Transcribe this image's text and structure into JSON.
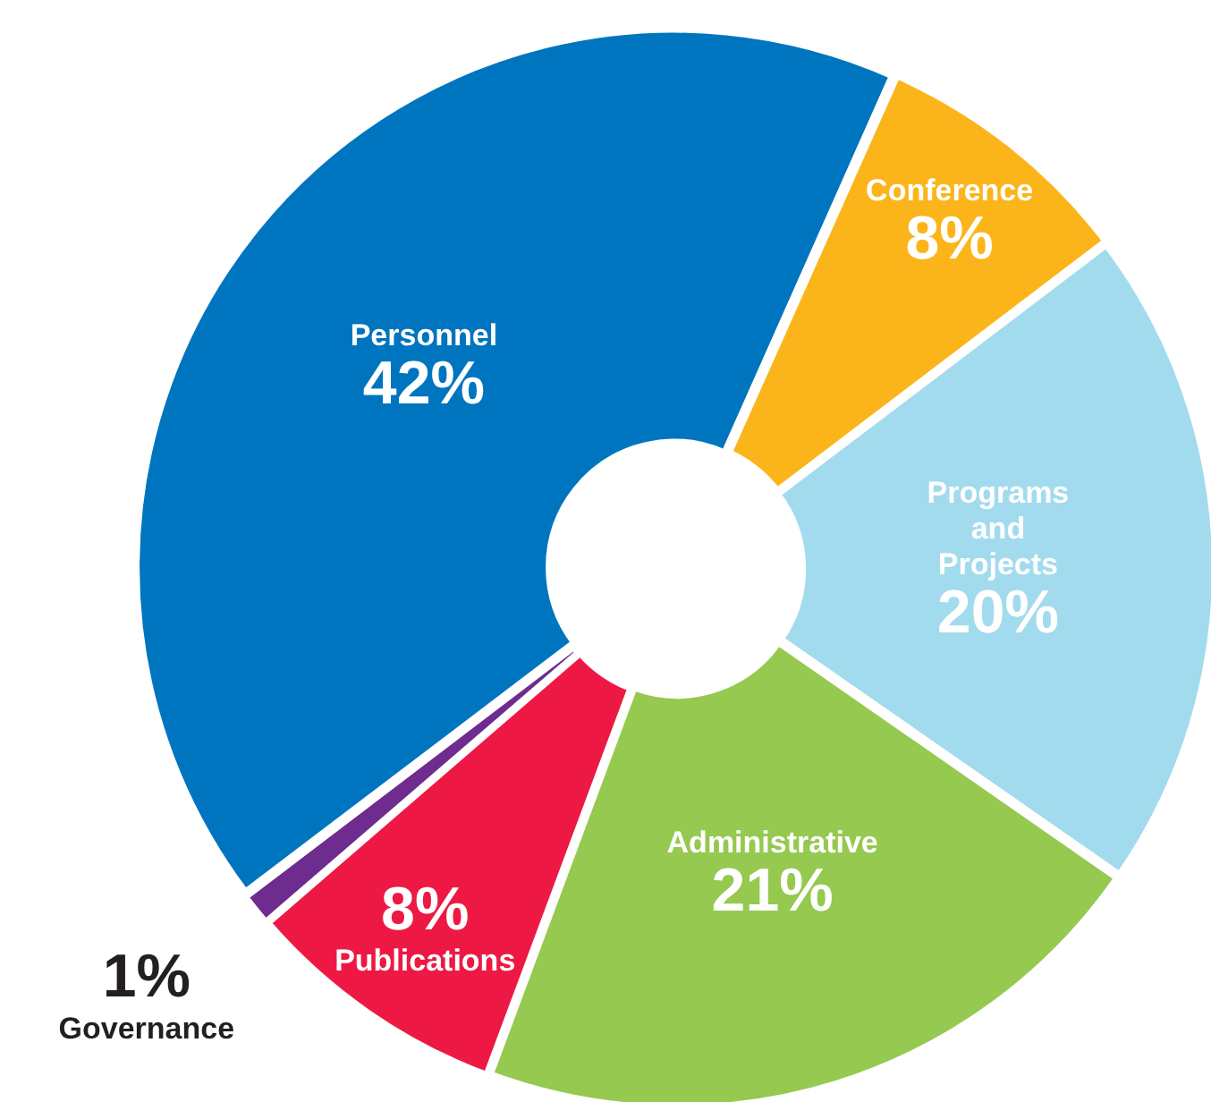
{
  "chart_data": {
    "type": "donut",
    "categories": [
      "Conference",
      "Programs and Projects",
      "Administrative",
      "Publications",
      "Governance",
      "Personnel"
    ],
    "values": [
      8,
      20,
      21,
      8,
      1,
      42
    ],
    "colors": [
      "#fbb51b",
      "#a3dbee",
      "#95c94f",
      "#ed1944",
      "#6d2c8e",
      "#0075bf"
    ],
    "value_labels": [
      "8%",
      "20%",
      "21%",
      "8%",
      "1%",
      "42%"
    ],
    "legend": false
  }
}
